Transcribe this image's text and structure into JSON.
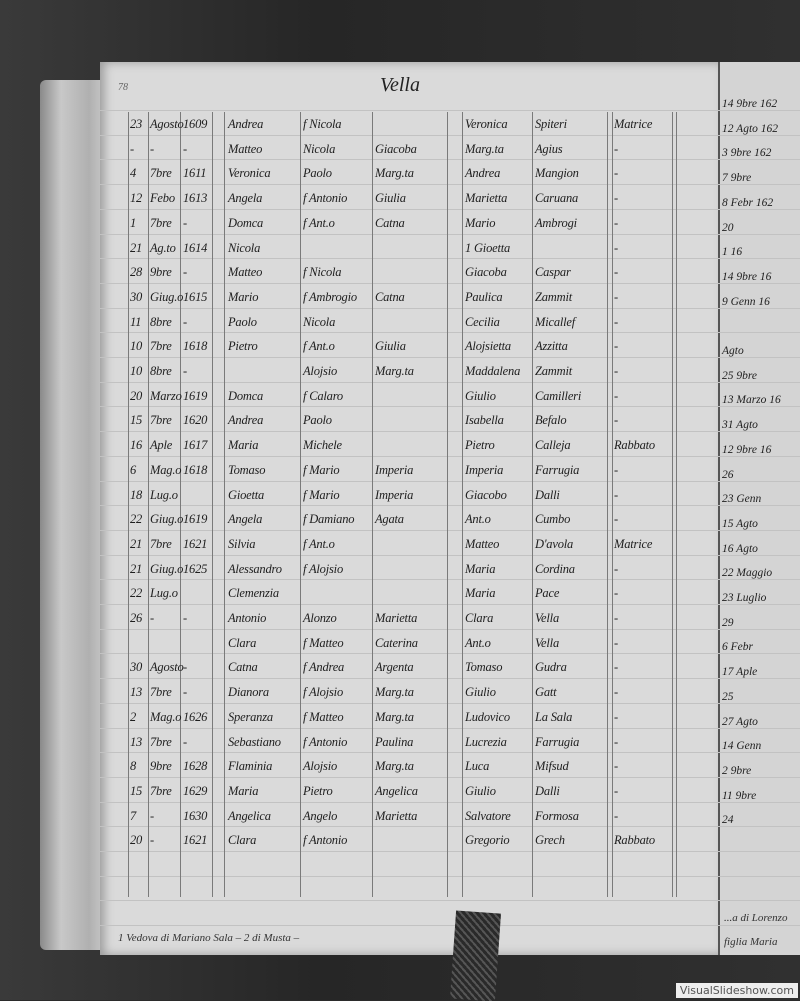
{
  "page": {
    "number": "78",
    "title": "Vella"
  },
  "rows": [
    [
      "23",
      "Agosto",
      "1609",
      "Andrea",
      "f Nicola",
      "",
      "Veronica",
      "Spiteri",
      "Matrice"
    ],
    [
      "-",
      "-",
      "-",
      "Matteo",
      "Nicola",
      "Giacoba",
      "Marg.ta",
      "Agius",
      "-"
    ],
    [
      "4",
      "7bre",
      "1611",
      "Veronica",
      "Paolo",
      "Marg.ta",
      "Andrea",
      "Mangion",
      "-"
    ],
    [
      "12",
      "Febo",
      "1613",
      "Angela",
      "f Antonio",
      "Giulia",
      "Marietta",
      "Caruana",
      "-"
    ],
    [
      "1",
      "7bre",
      "-",
      "Domca",
      "f Ant.o",
      "Catna",
      "Mario",
      "Ambrogi",
      "-"
    ],
    [
      "21",
      "Ag.to",
      "1614",
      "Nicola",
      "",
      "",
      "1 Gioetta",
      "",
      "-"
    ],
    [
      "28",
      "9bre",
      "-",
      "Matteo",
      "f Nicola",
      "",
      "Giacoba",
      "Caspar",
      "-"
    ],
    [
      "30",
      "Giug.o",
      "1615",
      "Mario",
      "f Ambrogio",
      "Catna",
      "Paulica",
      "Zammit",
      "-"
    ],
    [
      "11",
      "8bre",
      "-",
      "Paolo",
      "Nicola",
      "",
      "Cecilia",
      "Micallef",
      "-"
    ],
    [
      "10",
      "7bre",
      "1618",
      "Pietro",
      "f Ant.o",
      "Giulia",
      "Alojsietta",
      "Azzitta",
      "-"
    ],
    [
      "10",
      "8bre",
      "-",
      "",
      "Alojsio",
      "Marg.ta",
      "Maddalena",
      "Zammit",
      "-"
    ],
    [
      "20",
      "Marzo",
      "1619",
      "Domca",
      "f Calaro",
      "",
      "Giulio",
      "Camilleri",
      "-"
    ],
    [
      "15",
      "7bre",
      "1620",
      "Andrea",
      "Paolo",
      "",
      "Isabella",
      "Befalo",
      "-"
    ],
    [
      "16",
      "Aple",
      "1617",
      "Maria",
      "Michele",
      "",
      "Pietro",
      "Calleja",
      "Rabbato"
    ],
    [
      "6",
      "Mag.o",
      "1618",
      "Tomaso",
      "f Mario",
      "Imperia",
      "Imperia",
      "Farrugia",
      "-"
    ],
    [
      "18",
      "Lug.o",
      "",
      "Gioetta",
      "f Mario",
      "Imperia",
      "Giacobo",
      "Dalli",
      "-"
    ],
    [
      "22",
      "Giug.o",
      "1619",
      "Angela",
      "f Damiano",
      "Agata",
      "Ant.o",
      "Cumbo",
      "-"
    ],
    [
      "21",
      "7bre",
      "1621",
      "Silvia",
      "f Ant.o",
      "",
      "Matteo",
      "D'avola",
      "Matrice"
    ],
    [
      "21",
      "Giug.o",
      "1625",
      "Alessandro",
      "f Alojsio",
      "",
      "Maria",
      "Cordina",
      "-"
    ],
    [
      "22",
      "Lug.o",
      "",
      "Clemenzia",
      "",
      "",
      "Maria",
      "Pace",
      "-"
    ],
    [
      "26",
      "-",
      "-",
      "Antonio",
      "Alonzo",
      "Marietta",
      "Clara",
      "Vella",
      "-"
    ],
    [
      "",
      "",
      "",
      "Clara",
      "f Matteo",
      "Caterina",
      "Ant.o",
      "Vella",
      "-"
    ],
    [
      "30",
      "Agosto",
      "-",
      "Catna",
      "f Andrea",
      "Argenta",
      "Tomaso",
      "Gudra",
      "-"
    ],
    [
      "13",
      "7bre",
      "-",
      "Dianora",
      "f Alojsio",
      "Marg.ta",
      "Giulio",
      "Gatt",
      "-"
    ],
    [
      "2",
      "Mag.o",
      "1626",
      "Speranza",
      "f Matteo",
      "Marg.ta",
      "Ludovico",
      "La Sala",
      "-"
    ],
    [
      "13",
      "7bre",
      "-",
      "Sebastiano",
      "f Antonio",
      "Paulina",
      "Lucrezia",
      "Farrugia",
      "-"
    ],
    [
      "8",
      "9bre",
      "1628",
      "Flaminia",
      "Alojsio",
      "Marg.ta",
      "Luca",
      "Mifsud",
      "-"
    ],
    [
      "15",
      "7bre",
      "1629",
      "Maria",
      "Pietro",
      "Angelica",
      "Giulio",
      "Dalli",
      "-"
    ],
    [
      "7",
      "-",
      "1630",
      "Angelica",
      "Angelo",
      "Marietta",
      "Salvatore",
      "Formosa",
      "-"
    ],
    [
      "20",
      "-",
      "1621",
      "Clara",
      "f Antonio",
      "",
      "Gregorio",
      "Grech",
      "Rabbato"
    ]
  ],
  "right_page": [
    "14 9bre 162",
    "12 Agto 162",
    "3 9bre 162",
    "7 9bre",
    "8 Febr 162",
    "20",
    "1 16",
    "14 9bre 16",
    "9 Genn 16",
    "",
    "Agto",
    "25 9bre",
    "13 Marzo 16",
    "31 Agto",
    "12 9bre 16",
    "26",
    "23 Genn",
    "15 Agto",
    "16 Agto",
    "22 Maggio",
    "23 Luglio",
    "29",
    "6 Febr",
    "17 Aple",
    "25",
    "27 Agto",
    "14 Genn",
    "2 9bre",
    "11 9bre",
    "24"
  ],
  "footnote": "1 Vedova di Mariano Sala – 2 di Musta –",
  "right_footnotes": [
    "...a di Lorenzo",
    "figlia Maria"
  ],
  "watermark": "VisualSlideshow.com"
}
